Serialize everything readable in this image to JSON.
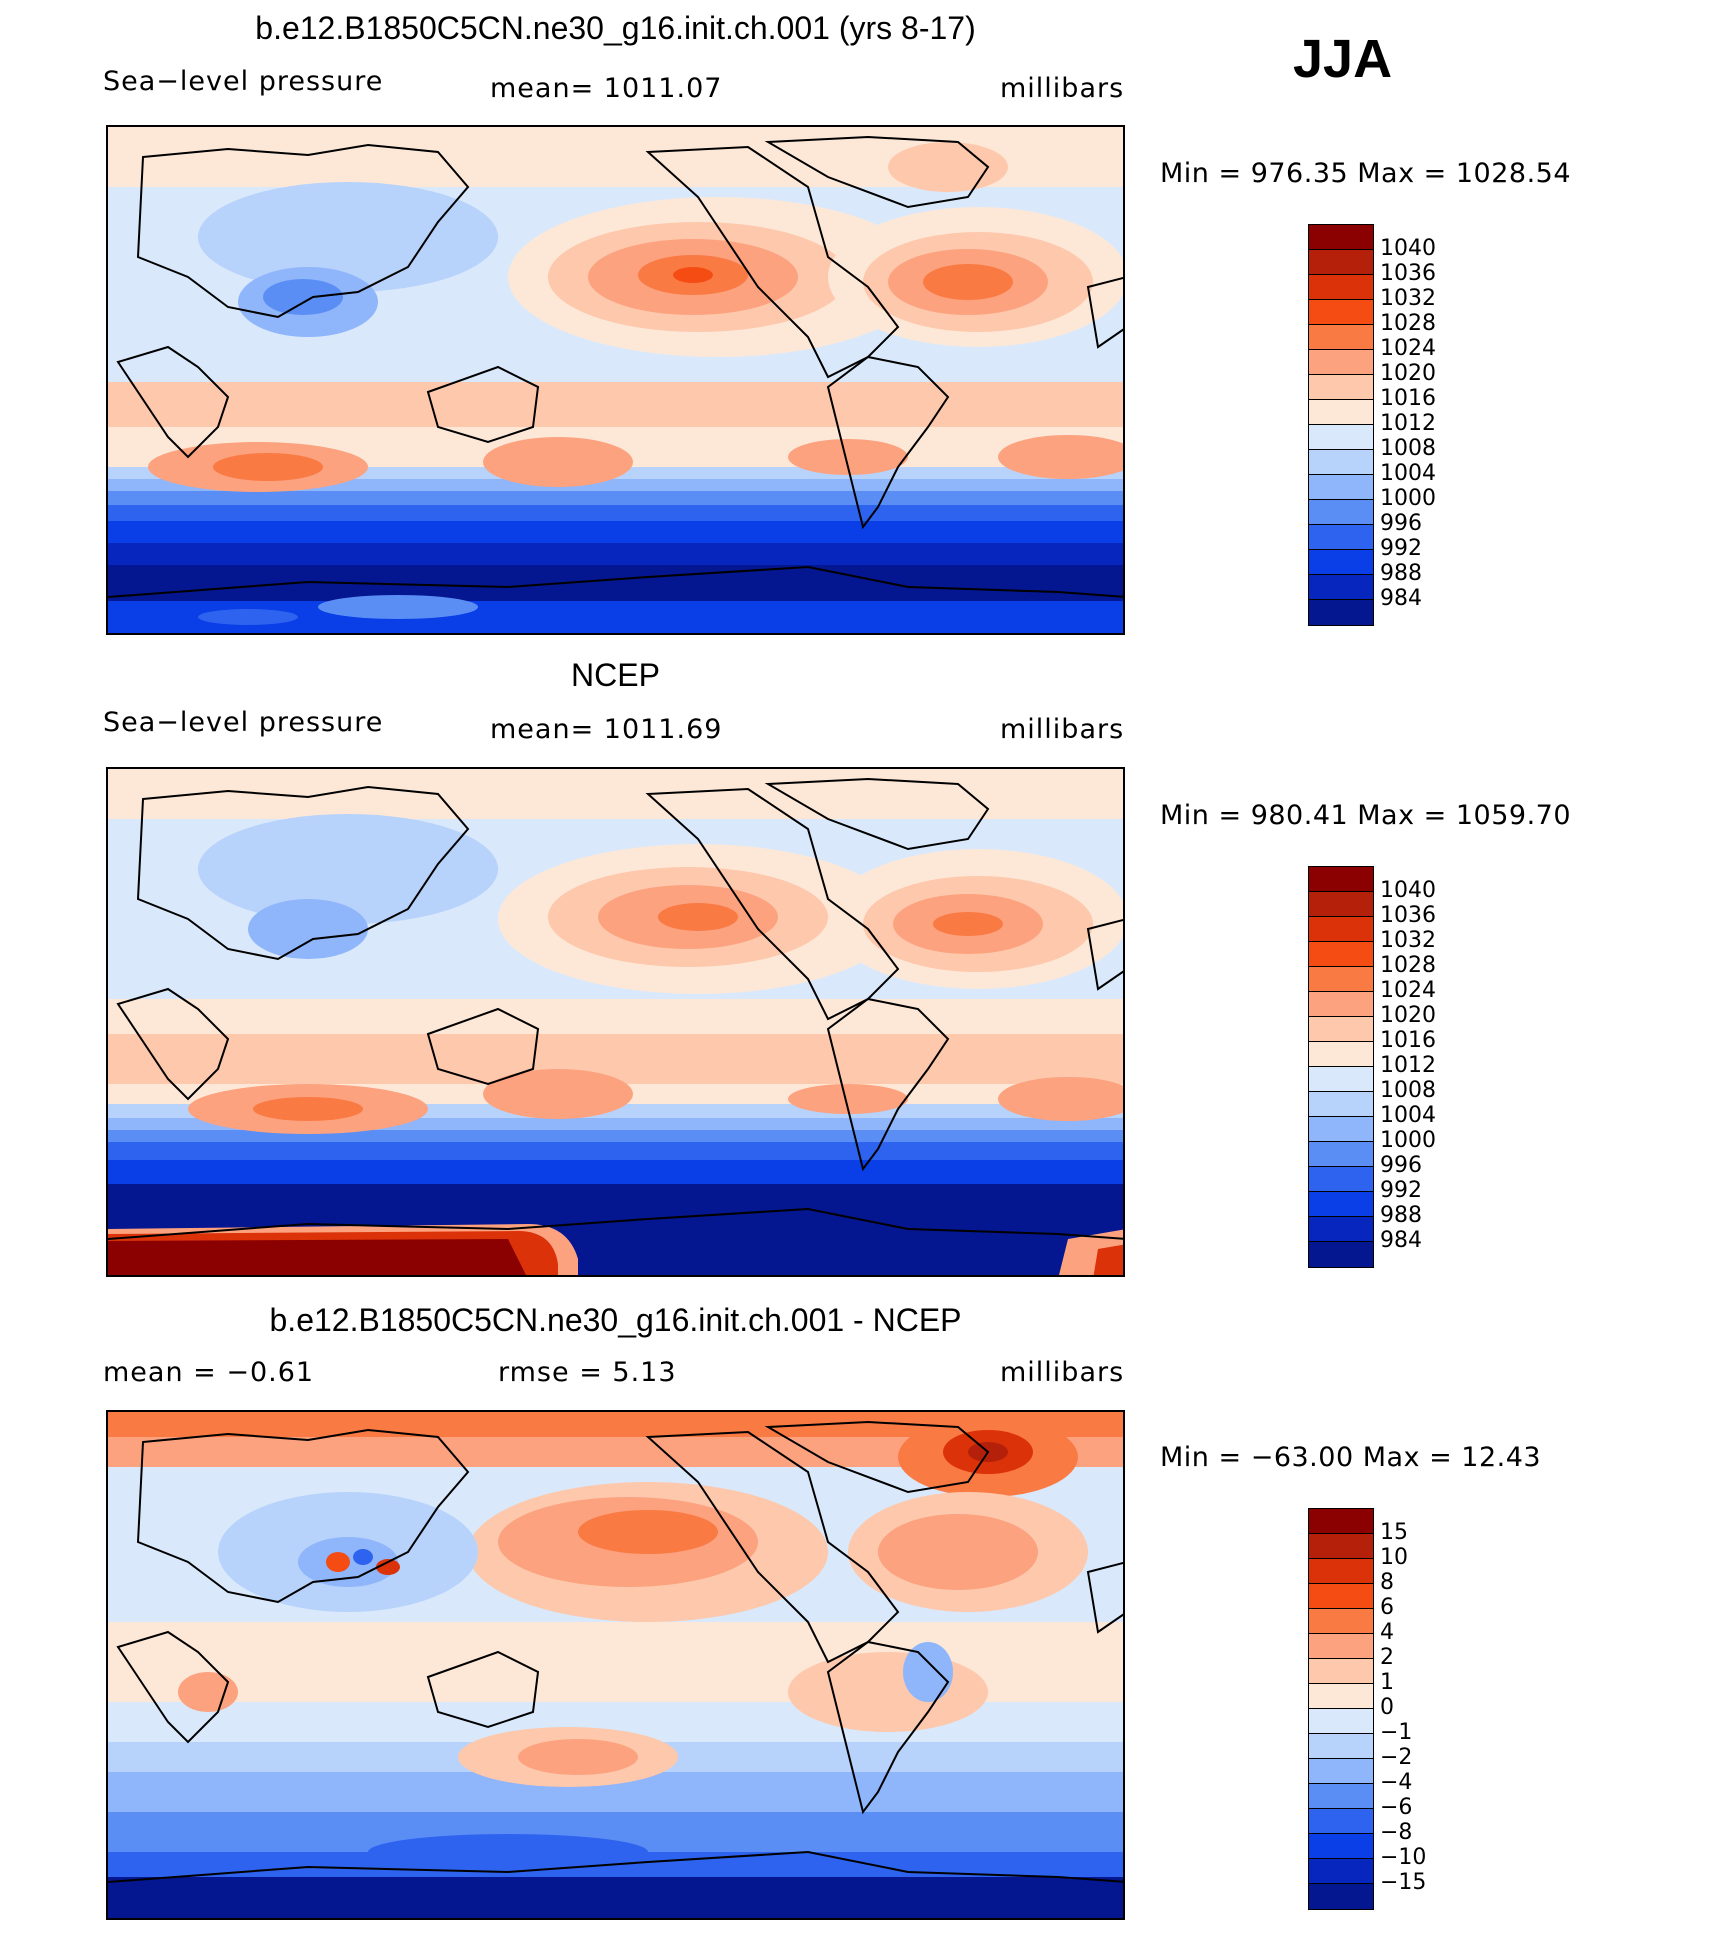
{
  "season": "JJA",
  "units": "millibars",
  "panels": [
    {
      "title": "b.e12.B1850C5CN.ne30_g16.init.ch.001 (yrs 8-17)",
      "left_label": "Sea−level pressure",
      "center_label": "mean=  1011.07",
      "right_label": "millibars",
      "minmax": "Min  =  976.35  Max  =  1028.54"
    },
    {
      "title": "NCEP",
      "left_label": "Sea−level pressure",
      "center_label": "mean=  1011.69",
      "right_label": "millibars",
      "minmax": "Min  =  980.41  Max  =  1059.70"
    },
    {
      "title": "b.e12.B1850C5CN.ne30_g16.init.ch.001 - NCEP",
      "left_label": "mean  =    −0.61",
      "center_label": "rmse  =     5.13",
      "right_label": "millibars",
      "minmax": "Min  =  −63.00  Max  =    12.43"
    }
  ],
  "colorbar_abs": {
    "levels": [
      "1040",
      "1036",
      "1032",
      "1028",
      "1024",
      "1020",
      "1016",
      "1012",
      "1008",
      "1004",
      "1000",
      "996",
      "992",
      "988",
      "984"
    ],
    "colors": [
      "#8b0000",
      "#b5200a",
      "#db3209",
      "#f54c14",
      "#fa7a44",
      "#fca27f",
      "#fdc8ac",
      "#fde8d8",
      "#d9e9fb",
      "#b7d2fb",
      "#8fb5fa",
      "#5b8ef5",
      "#2e63ef",
      "#0a3ee6",
      "#0726bd",
      "#041690"
    ]
  },
  "colorbar_diff": {
    "levels": [
      "15",
      "10",
      "8",
      "6",
      "4",
      "2",
      "1",
      "0",
      "−1",
      "−2",
      "−4",
      "−6",
      "−8",
      "−10",
      "−15"
    ],
    "colors": [
      "#8b0000",
      "#b5200a",
      "#db3209",
      "#f54c14",
      "#fa7a44",
      "#fca27f",
      "#fdc8ac",
      "#fde8d8",
      "#d9e9fb",
      "#b7d2fb",
      "#8fb5fa",
      "#5b8ef5",
      "#2e63ef",
      "#0a3ee6",
      "#0726bd",
      "#041690"
    ]
  }
}
